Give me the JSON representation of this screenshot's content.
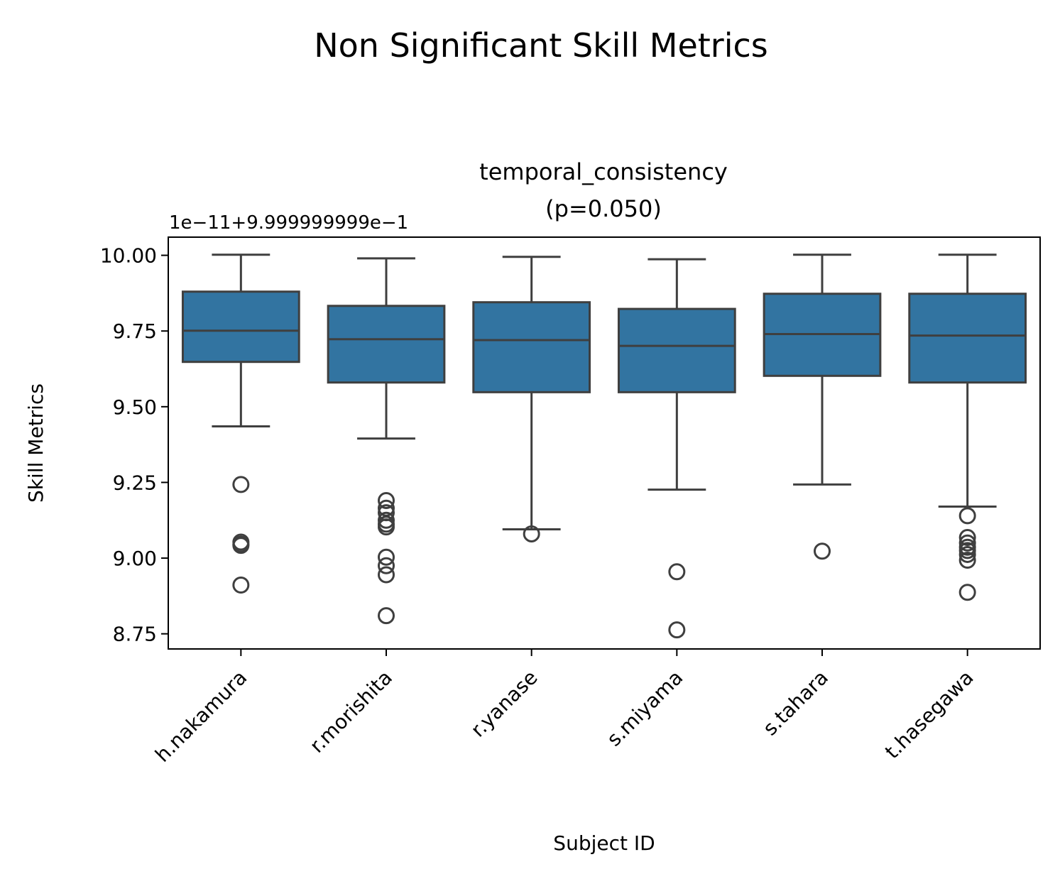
{
  "figure": {
    "suptitle": "Non Significant Skill Metrics"
  },
  "chart_data": {
    "type": "box",
    "title_line1": "temporal_consistency",
    "title_line2": "(p=0.050)",
    "offset_text": "1e−11+9.999999999e−1",
    "xlabel": "Subject ID",
    "ylabel": "Skill Metrics",
    "ylim": [
      8.7,
      10.06
    ],
    "yticks": [
      8.75,
      9.0,
      9.25,
      9.5,
      9.75,
      10.0
    ],
    "ytick_labels": [
      "8.75",
      "9.00",
      "9.25",
      "9.50",
      "9.75",
      "10.00"
    ],
    "box_color": "#3274a1",
    "line_color": "#3f3f3f",
    "categories": [
      "h.nakamura",
      "r.morishita",
      "r.yanase",
      "s.miyama",
      "s.tahara",
      "t.hasegawa"
    ],
    "boxes": [
      {
        "name": "h.nakamura",
        "whisker_low": 9.435,
        "q1": 9.648,
        "median": 9.751,
        "q3": 9.88,
        "whisker_high": 10.002,
        "outliers": [
          9.243,
          9.053,
          9.046,
          9.042,
          8.911
        ]
      },
      {
        "name": "r.morishita",
        "whisker_low": 9.395,
        "q1": 9.58,
        "median": 9.723,
        "q3": 9.833,
        "whisker_high": 9.99,
        "outliers": [
          9.19,
          9.165,
          9.15,
          9.125,
          9.112,
          9.103,
          9.003,
          8.975,
          8.945,
          8.81
        ]
      },
      {
        "name": "r.yanase",
        "whisker_low": 9.095,
        "q1": 9.548,
        "median": 9.72,
        "q3": 9.845,
        "whisker_high": 9.995,
        "outliers": [
          9.08
        ]
      },
      {
        "name": "s.miyama",
        "whisker_low": 9.226,
        "q1": 9.548,
        "median": 9.701,
        "q3": 9.823,
        "whisker_high": 9.987,
        "outliers": [
          8.955,
          8.763
        ]
      },
      {
        "name": "s.tahara",
        "whisker_low": 9.243,
        "q1": 9.602,
        "median": 9.74,
        "q3": 9.873,
        "whisker_high": 10.002,
        "outliers": [
          9.023
        ]
      },
      {
        "name": "t.hasegawa",
        "whisker_low": 9.17,
        "q1": 9.58,
        "median": 9.735,
        "q3": 9.873,
        "whisker_high": 10.002,
        "outliers": [
          9.14,
          9.068,
          9.05,
          9.036,
          9.025,
          9.012,
          8.993,
          8.887
        ]
      }
    ]
  }
}
